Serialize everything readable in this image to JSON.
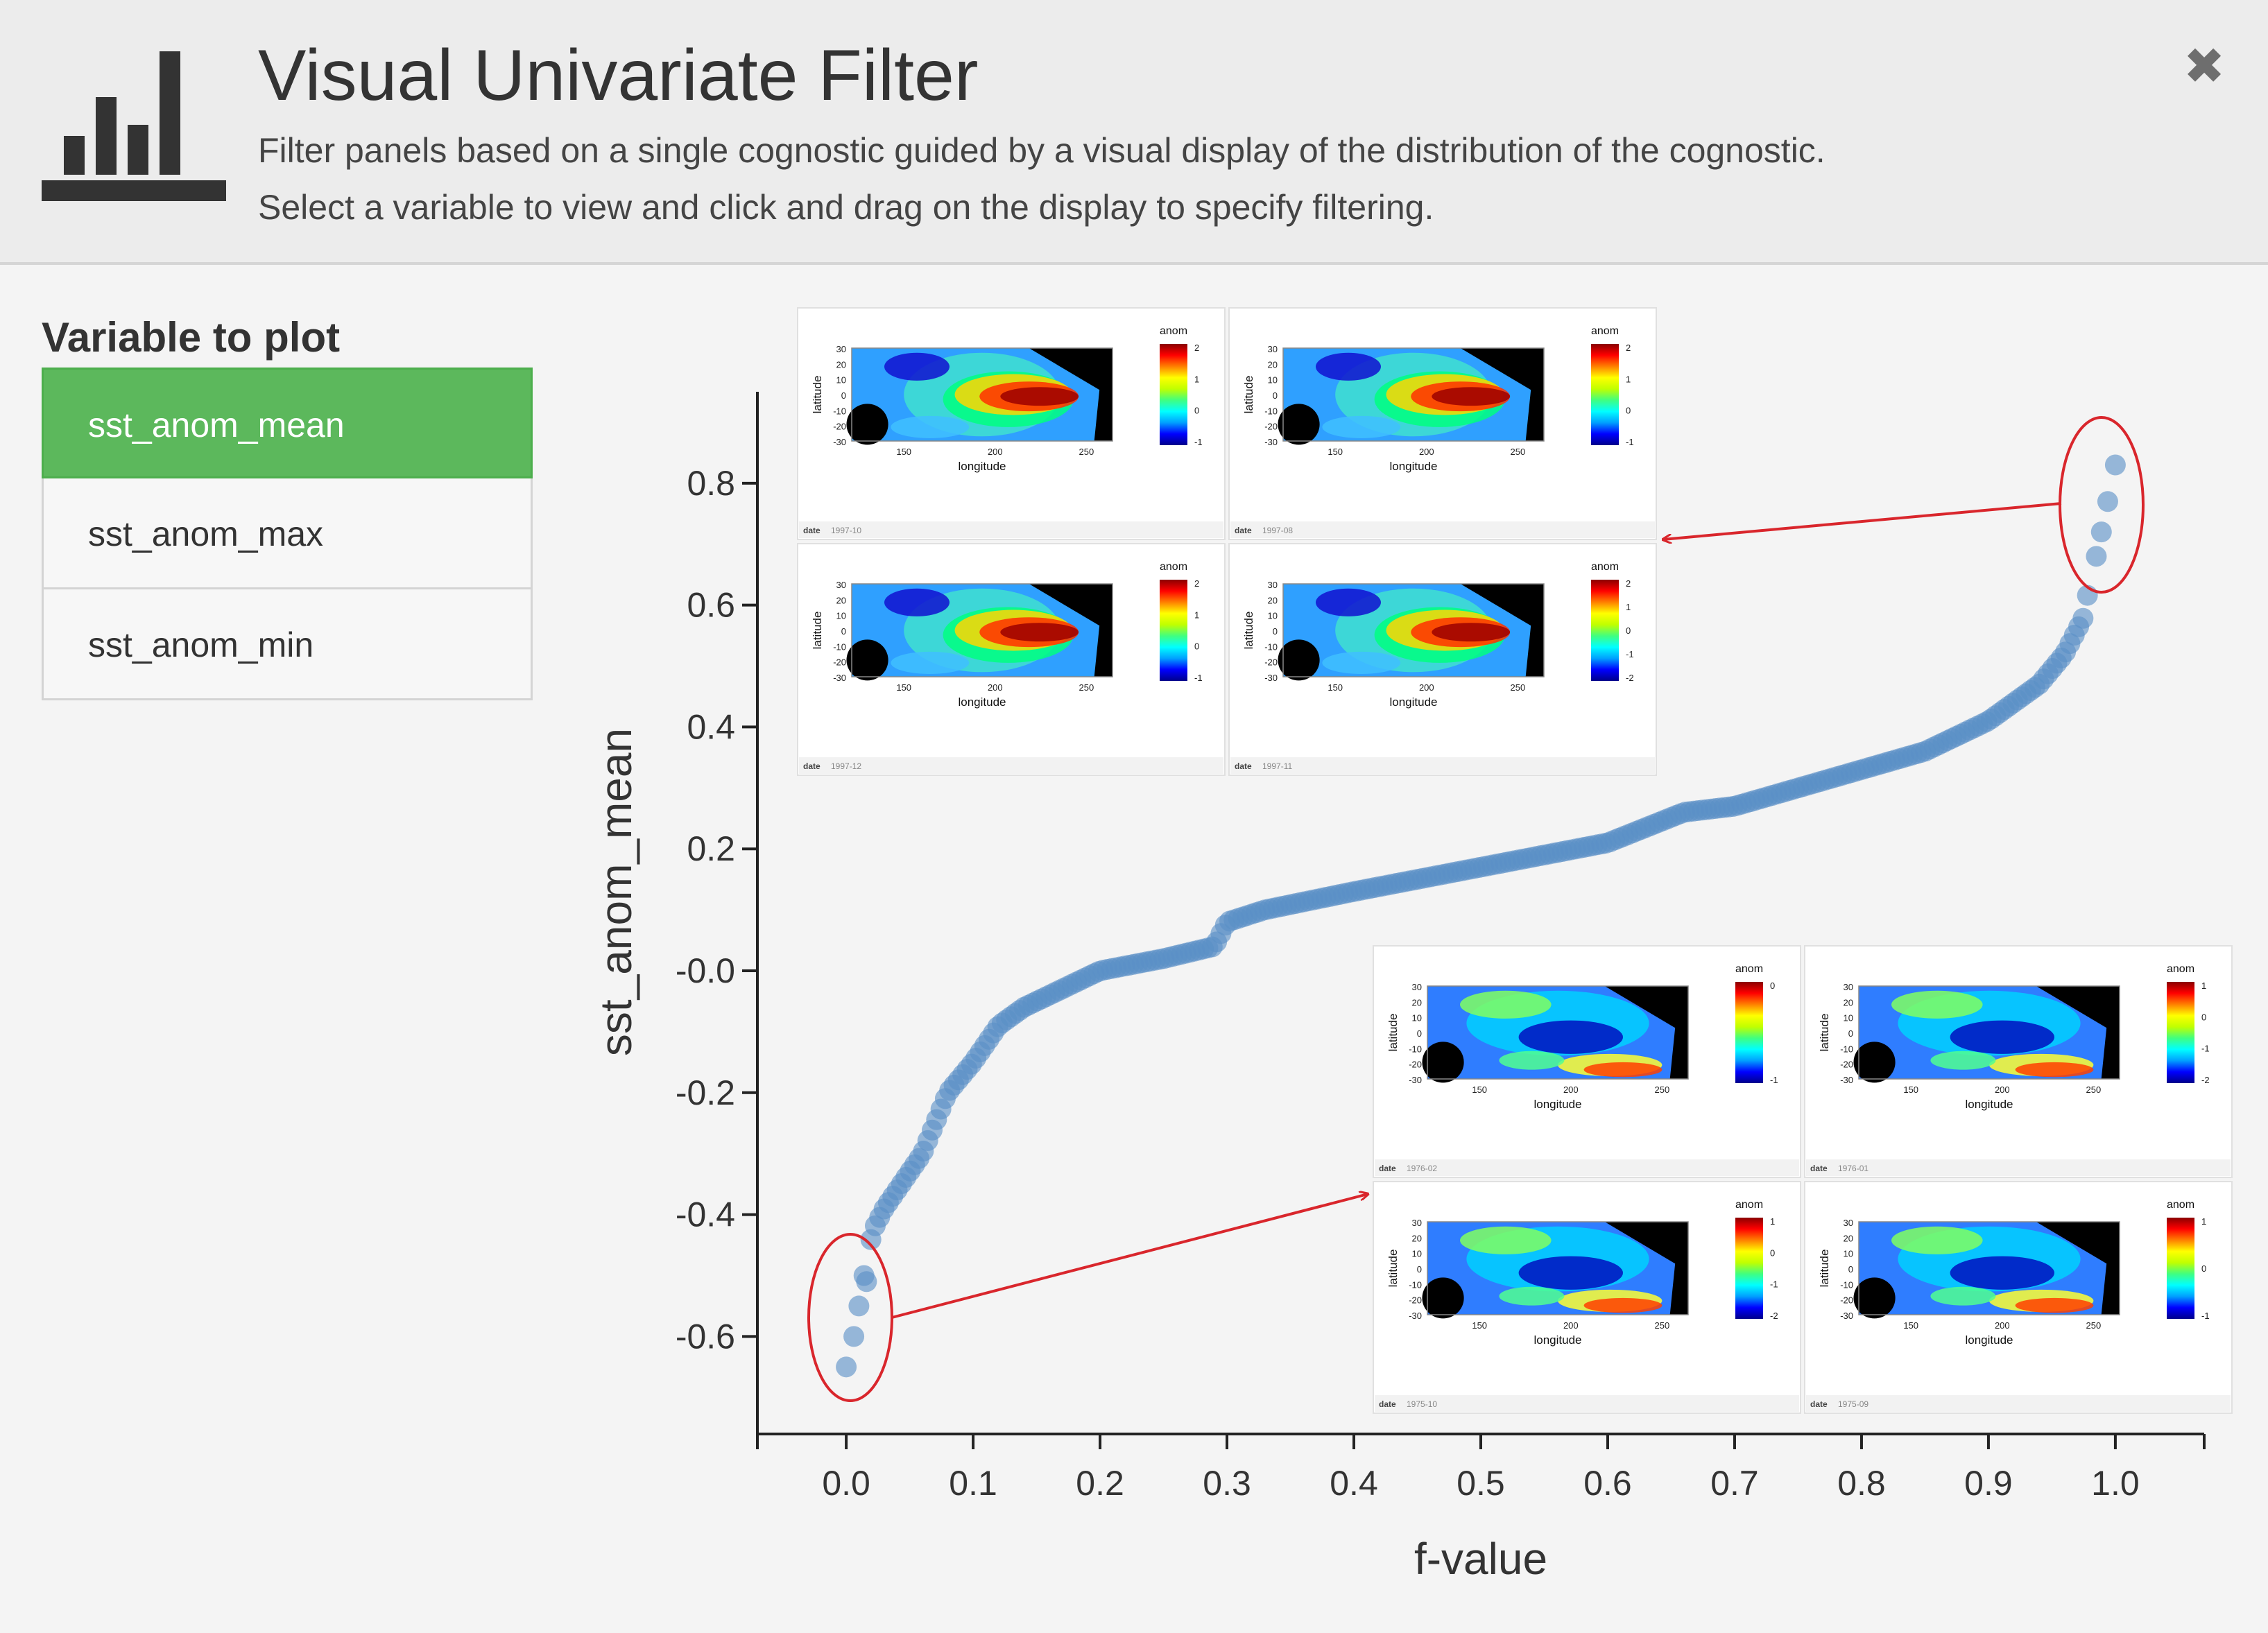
{
  "modal": {
    "title": "Visual Univariate Filter",
    "description_line1": "Filter panels based on a single cognostic guided by a visual display of the distribution of the cognostic.",
    "description_line2": "Select a variable to view and click and drag on the display to specify filtering.",
    "close_icon": "close-x-icon",
    "app_icon": "bar-chart-icon"
  },
  "sidebar": {
    "heading": "Variable to plot",
    "items": [
      {
        "label": "sst_anom_mean",
        "active": true
      },
      {
        "label": "sst_anom_max",
        "active": false
      },
      {
        "label": "sst_anom_min",
        "active": false
      }
    ]
  },
  "colors": {
    "active_green": "#5cb85c",
    "point_blue": "#5b8fc7",
    "annotation_red": "#d9262c",
    "header_bg": "#ececec"
  },
  "chart_data": {
    "type": "scatter",
    "xlabel": "f-value",
    "ylabel": "sst_anom_mean",
    "xlim": [
      -0.07,
      1.07
    ],
    "ylim": [
      -0.76,
      0.95
    ],
    "x_ticks": [
      "0.0",
      "0.1",
      "0.2",
      "0.3",
      "0.4",
      "0.5",
      "0.6",
      "0.7",
      "0.8",
      "0.9",
      "1.0"
    ],
    "y_ticks": [
      "-0.6",
      "-0.4",
      "-0.2",
      "-0.0",
      "0.2",
      "0.4",
      "0.6",
      "0.8"
    ],
    "curve_x": [
      0.0,
      0.012,
      0.02,
      0.03,
      0.04,
      0.05,
      0.06,
      0.07,
      0.08,
      0.1,
      0.12,
      0.14,
      0.17,
      0.2,
      0.25,
      0.29,
      0.3,
      0.33,
      0.4,
      0.5,
      0.6,
      0.66,
      0.7,
      0.8,
      0.85,
      0.9,
      0.94,
      0.96,
      0.975,
      0.985,
      1.0
    ],
    "curve_y": [
      -0.65,
      -0.59,
      -0.43,
      -0.39,
      -0.36,
      -0.33,
      -0.3,
      -0.25,
      -0.2,
      -0.15,
      -0.09,
      -0.06,
      -0.03,
      0.0,
      0.02,
      0.04,
      0.08,
      0.1,
      0.13,
      0.17,
      0.21,
      0.26,
      0.27,
      0.33,
      0.36,
      0.41,
      0.47,
      0.52,
      0.58,
      0.7,
      0.84
    ],
    "highlight_low": [
      [
        0.0,
        -0.65
      ],
      [
        0.006,
        -0.6
      ],
      [
        0.01,
        -0.55
      ],
      [
        0.014,
        -0.5
      ]
    ],
    "highlight_high": [
      [
        0.985,
        0.68
      ],
      [
        0.989,
        0.72
      ],
      [
        0.994,
        0.77
      ],
      [
        1.0,
        0.83
      ]
    ]
  },
  "thumbnails": {
    "legend_title": "anom",
    "ylabel": "latitude",
    "xlabel": "longitude",
    "x_ticks": [
      "150",
      "200",
      "250"
    ],
    "y_ticks": [
      "30",
      "20",
      "10",
      "0",
      "-10",
      "-20",
      "-30"
    ],
    "footer_key": "date",
    "top_group": [
      {
        "date": "1997-10",
        "scale": [
          "2",
          "1",
          "0",
          "-1"
        ],
        "theme": "hot"
      },
      {
        "date": "1997-08",
        "scale": [
          "2",
          "1",
          "0",
          "-1"
        ],
        "theme": "hot"
      },
      {
        "date": "1997-12",
        "scale": [
          "2",
          "1",
          "0",
          "-1"
        ],
        "theme": "hot"
      },
      {
        "date": "1997-11",
        "scale": [
          "2",
          "1",
          "0",
          "-1",
          "-2"
        ],
        "theme": "hot"
      }
    ],
    "bottom_group": [
      {
        "date": "1976-02",
        "scale": [
          "0",
          "-1"
        ],
        "theme": "cold"
      },
      {
        "date": "1976-01",
        "scale": [
          "1",
          "0",
          "-1",
          "-2"
        ],
        "theme": "cold"
      },
      {
        "date": "1975-10",
        "scale": [
          "1",
          "0",
          "-1",
          "-2"
        ],
        "theme": "cold"
      },
      {
        "date": "1975-09",
        "scale": [
          "1",
          "0",
          "-1"
        ],
        "theme": "cold"
      }
    ]
  }
}
